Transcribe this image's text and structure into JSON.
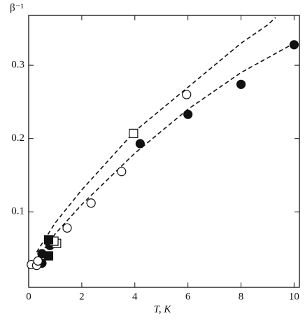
{
  "chart_data": {
    "type": "scatter",
    "ylabel": "β⁻¹",
    "xlabel": "T, K",
    "xlim": [
      0,
      10.2
    ],
    "ylim": [
      -0.003,
      0.368
    ],
    "xticks": [
      0,
      2,
      4,
      6,
      8,
      10
    ],
    "yticks": [
      0.1,
      0.2,
      0.3
    ],
    "series": [
      {
        "marker": "line",
        "style": "dashed",
        "color": "#111",
        "x": [
          0.3,
          1,
          2,
          3,
          4,
          5,
          6,
          7,
          8,
          9,
          9.3
        ],
        "values": [
          0.045,
          0.085,
          0.13,
          0.17,
          0.21,
          0.24,
          0.27,
          0.3,
          0.33,
          0.355,
          0.365
        ]
      },
      {
        "marker": "line",
        "style": "dashed",
        "color": "#111",
        "x": [
          0.3,
          1,
          2,
          3,
          4,
          5,
          6,
          7,
          8,
          9,
          10
        ],
        "values": [
          0.035,
          0.07,
          0.11,
          0.145,
          0.18,
          0.21,
          0.24,
          0.265,
          0.29,
          0.31,
          0.33
        ]
      },
      {
        "marker": "circle",
        "filled": true,
        "color": "#111",
        "x": [
          0.5,
          0.5,
          0.8,
          4.2,
          6,
          8,
          10
        ],
        "values": [
          0.03,
          0.043,
          0.054,
          0.193,
          0.233,
          0.274,
          0.328
        ]
      },
      {
        "marker": "circle",
        "filled": false,
        "color": "#111",
        "x": [
          0.1,
          0.3,
          0.35,
          1.45,
          2.35,
          3.5,
          5.95
        ],
        "values": [
          0.028,
          0.027,
          0.033,
          0.078,
          0.112,
          0.155,
          0.26
        ]
      },
      {
        "marker": "square",
        "filled": false,
        "color": "#111",
        "x": [
          1.05,
          0.95,
          3.95
        ],
        "values": [
          0.057,
          0.06,
          0.207
        ]
      },
      {
        "marker": "square",
        "filled": true,
        "color": "#111",
        "x": [
          0.75,
          0.75
        ],
        "values": [
          0.062,
          0.04
        ]
      }
    ]
  }
}
